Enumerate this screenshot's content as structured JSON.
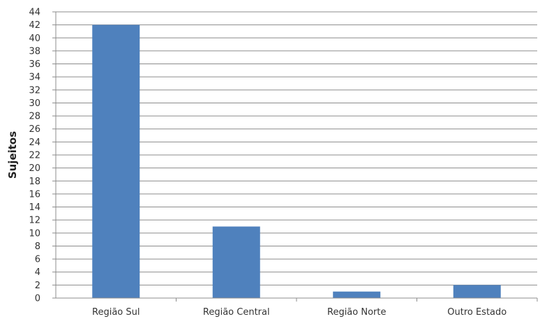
{
  "chart_data": {
    "type": "bar",
    "title": "",
    "xlabel": "",
    "ylabel": "Sujeitos",
    "categories": [
      "Região Sul",
      "Região Central",
      "Região Norte",
      "Outro Estado"
    ],
    "values": [
      42,
      11,
      1,
      2
    ],
    "ylim": [
      0,
      44
    ],
    "yticks": [
      "0",
      "2",
      "4",
      "6",
      "8",
      "10",
      "12",
      "14",
      "16",
      "18",
      "20",
      "22",
      "24",
      "26",
      "28",
      "30",
      "32",
      "34",
      "36",
      "38",
      "40",
      "42",
      "44"
    ],
    "grid": true,
    "legend": "none",
    "colors": {
      "bar": "#4f81bd",
      "grid": "#8c8c8c",
      "axis": "#8c8c8c"
    }
  }
}
